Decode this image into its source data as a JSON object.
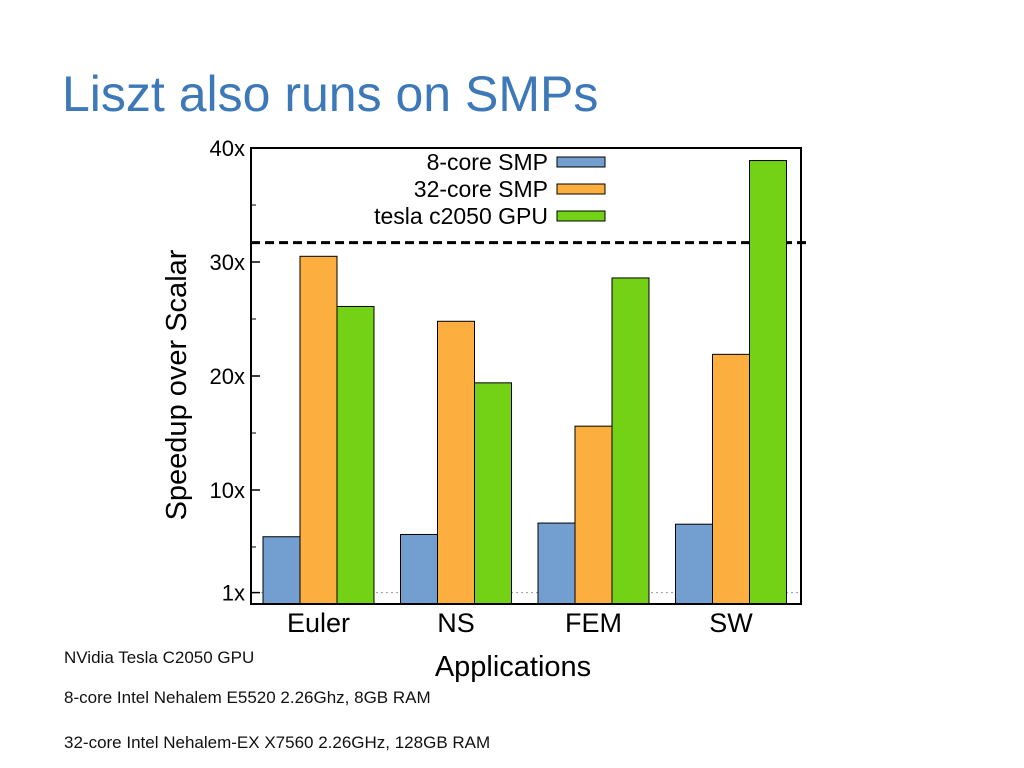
{
  "slide": {
    "title": "Liszt also runs on SMPs",
    "footnotes": [
      "NVidia Tesla C2050 GPU",
      "8-core Intel Nehalem E5520 2.26Ghz, 8GB RAM",
      "32-core Intel Nehalem-EX X7560 2.26GHz, 128GB RAM"
    ]
  },
  "chart_data": {
    "type": "bar",
    "xlabel": "Applications",
    "ylabel": "Speedup over Scalar",
    "ylim": [
      0,
      40
    ],
    "yticks": [
      {
        "value": 1,
        "label": "1x"
      },
      {
        "value": 10,
        "label": "10x"
      },
      {
        "value": 20,
        "label": "20x"
      },
      {
        "value": 30,
        "label": "30x"
      },
      {
        "value": 40,
        "label": "40x"
      }
    ],
    "categories": [
      "Euler",
      "NS",
      "FEM",
      "SW"
    ],
    "series": [
      {
        "name": "8-core SMP",
        "color": "#729fcf",
        "values": [
          5.9,
          6.1,
          7.1,
          7.0
        ]
      },
      {
        "name": "32-core SMP",
        "color": "#fcaf3e",
        "values": [
          30.5,
          24.8,
          15.6,
          21.9
        ]
      },
      {
        "name": "tesla c2050 GPU",
        "color": "#73d216",
        "values": [
          26.1,
          19.4,
          28.6,
          38.9
        ]
      }
    ],
    "reference_lines": [
      {
        "value": 31.7,
        "style": "dashed"
      },
      {
        "value": 1,
        "style": "dotted"
      }
    ],
    "legend_position": "top-right",
    "grid": false
  }
}
